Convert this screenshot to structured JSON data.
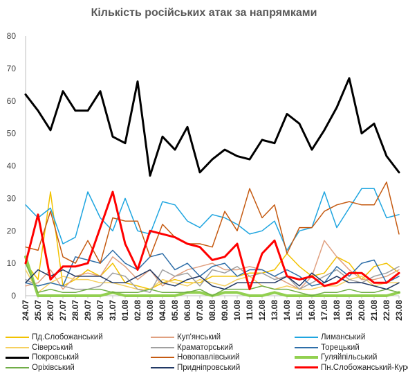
{
  "chart_data": {
    "type": "line",
    "title": "Кількість російських атак за напрямками",
    "xlabel": "",
    "ylabel": "",
    "ylim": [
      0,
      80
    ],
    "yticks": [
      "0",
      "10",
      "20",
      "30",
      "40",
      "50",
      "60",
      "70",
      "80"
    ],
    "grid": false,
    "legend_position": "bottom",
    "categories": [
      "24.07",
      "25.07",
      "26.07",
      "27.07",
      "28.07",
      "29.07",
      "30.07",
      "31.07",
      "01.08",
      "02.08",
      "03.08",
      "04.08",
      "05.08",
      "06.08",
      "07.08",
      "08.08",
      "09.08",
      "10.08",
      "11.08",
      "12.08",
      "13.08",
      "14.08",
      "15.08",
      "16.08",
      "17.08",
      "18.08",
      "19.08",
      "20.08",
      "21.08",
      "22.08",
      "23.08"
    ],
    "series": [
      {
        "name": "Пд.Слобожанський",
        "color": "#f2c200",
        "width": 1.5,
        "values": [
          10,
          5,
          32,
          3,
          5,
          8,
          6,
          10,
          4,
          3,
          2,
          4,
          5,
          4,
          4,
          6,
          6,
          6,
          7,
          7,
          8,
          13,
          9,
          6,
          7,
          12,
          10,
          5,
          9,
          10,
          7
        ]
      },
      {
        "name": "Куп'янський",
        "color": "#e0a080",
        "width": 1.5,
        "values": [
          3,
          4,
          8,
          2,
          6,
          7,
          6,
          12,
          9,
          5,
          8,
          3,
          6,
          8,
          9,
          10,
          8,
          8,
          9,
          8,
          6,
          4,
          2,
          6,
          17,
          12,
          8,
          5,
          5,
          6,
          8
        ]
      },
      {
        "name": "Лиманський",
        "color": "#1ea5e0",
        "width": 1.5,
        "values": [
          28,
          24,
          27,
          16,
          18,
          32,
          24,
          20,
          30,
          20,
          19,
          29,
          28,
          23,
          21,
          25,
          24,
          22,
          19,
          20,
          23,
          14,
          20,
          21,
          32,
          21,
          27,
          33,
          33,
          24,
          25
        ]
      },
      {
        "name": "Сіверський",
        "color": "#f5d060",
        "width": 1.5,
        "values": [
          8,
          1,
          4,
          6,
          5,
          5,
          4,
          4,
          3,
          2,
          2,
          5,
          4,
          3,
          5,
          4,
          3,
          5,
          6,
          3,
          2,
          3,
          2,
          2,
          3,
          3,
          5,
          6,
          3,
          4,
          4
        ]
      },
      {
        "name": "Краматорський",
        "color": "#a0a0a0",
        "width": 1.5,
        "values": [
          5,
          3,
          4,
          3,
          2,
          2,
          3,
          7,
          6,
          2,
          1,
          8,
          6,
          7,
          3,
          8,
          7,
          9,
          6,
          7,
          5,
          6,
          2,
          4,
          6,
          8,
          5,
          4,
          6,
          7,
          9
        ]
      },
      {
        "name": "Торецький",
        "color": "#2e6ea8",
        "width": 1.5,
        "values": [
          4,
          3,
          4,
          3,
          12,
          11,
          10,
          14,
          10,
          8,
          12,
          13,
          8,
          10,
          6,
          9,
          10,
          6,
          8,
          8,
          6,
          8,
          6,
          3,
          4,
          9,
          6,
          10,
          11,
          4,
          6
        ]
      },
      {
        "name": "Покровський",
        "color": "#000000",
        "width": 3,
        "values": [
          62,
          57,
          51,
          63,
          57,
          57,
          63,
          49,
          47,
          66,
          37,
          49,
          45,
          52,
          38,
          42,
          45,
          43,
          42,
          48,
          47,
          56,
          53,
          45,
          51,
          58,
          67,
          50,
          53,
          43,
          38
        ]
      },
      {
        "name": "Новопавлівський",
        "color": "#c55a11",
        "width": 1.5,
        "values": [
          15,
          14,
          26,
          12,
          10,
          17,
          10,
          24,
          23,
          23,
          12,
          22,
          18,
          16,
          16,
          15,
          26,
          20,
          33,
          24,
          28,
          13,
          21,
          21,
          26,
          28,
          29,
          28,
          28,
          35,
          19
        ]
      },
      {
        "name": "Гуляйпільський",
        "color": "#92d050",
        "width": 4,
        "values": [
          12,
          0,
          0,
          0,
          0,
          0,
          0,
          1,
          0,
          0,
          0,
          0,
          0,
          1,
          1,
          0,
          1,
          1,
          0,
          0,
          1,
          0,
          0,
          0,
          0,
          0,
          0,
          0,
          0,
          0,
          1
        ]
      },
      {
        "name": "Оріхівський",
        "color": "#70ad47",
        "width": 1.5,
        "values": [
          10,
          1,
          2,
          1,
          1,
          2,
          2,
          1,
          1,
          1,
          2,
          1,
          1,
          1,
          2,
          0,
          2,
          2,
          2,
          3,
          2,
          2,
          1,
          0,
          1,
          1,
          2,
          1,
          1,
          2,
          1
        ]
      },
      {
        "name": "Придніпровський",
        "color": "#203864",
        "width": 1.5,
        "values": [
          4,
          8,
          6,
          8,
          6,
          6,
          6,
          4,
          4,
          6,
          8,
          4,
          3,
          5,
          6,
          3,
          2,
          4,
          4,
          4,
          4,
          6,
          3,
          7,
          4,
          6,
          4,
          4,
          3,
          2,
          4
        ]
      },
      {
        "name": "Пн.Слобожанський-Курський",
        "color": "#ff0000",
        "width": 3,
        "values": [
          10,
          25,
          5,
          9,
          9,
          10,
          21,
          32,
          16,
          8,
          20,
          19,
          18,
          16,
          15,
          11,
          12,
          16,
          2,
          13,
          17,
          6,
          5,
          6,
          3,
          4,
          7,
          7,
          4,
          4,
          7
        ]
      }
    ]
  }
}
